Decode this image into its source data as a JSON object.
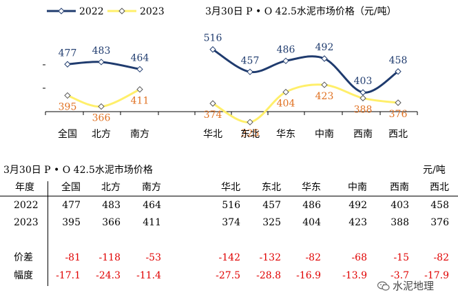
{
  "chart_data": {
    "type": "line",
    "title": "3月30日 P • O 42.5水泥市场价格（元/吨）",
    "groups": [
      [
        "全国",
        "北方",
        "南方"
      ],
      [
        "华北",
        "东北",
        "华东",
        "中南",
        "西南",
        "西北"
      ]
    ],
    "categories": [
      "全国",
      "北方",
      "南方",
      "华北",
      "东北",
      "华东",
      "中南",
      "西南",
      "西北"
    ],
    "series": [
      {
        "name": "2022",
        "color": "#1f3b6e",
        "values": [
          477,
          483,
          464,
          516,
          457,
          486,
          492,
          403,
          458
        ]
      },
      {
        "name": "2023",
        "color": "#ffef6a",
        "label_color": "#e07020",
        "values": [
          395,
          366,
          411,
          374,
          325,
          404,
          423,
          388,
          376
        ]
      }
    ],
    "ylim": [
      300,
      530
    ],
    "legend_position": "top-left",
    "xlabel": "",
    "ylabel": ""
  },
  "table": {
    "title": "3月30日 P • O 42.5水泥市场价格",
    "unit": "元/吨",
    "header_label": "年度",
    "columns": [
      "全国",
      "北方",
      "南方",
      "华北",
      "东北",
      "华东",
      "中南",
      "西南",
      "西北"
    ],
    "rows": [
      {
        "label": "2022",
        "values": [
          "477",
          "483",
          "464",
          "516",
          "457",
          "486",
          "492",
          "403",
          "458"
        ]
      },
      {
        "label": "2023",
        "values": [
          "395",
          "366",
          "411",
          "374",
          "325",
          "404",
          "423",
          "388",
          "376"
        ]
      },
      {
        "label": "价差",
        "values": [
          "-81",
          "-118",
          "-53",
          "-142",
          "-132",
          "-82",
          "-68",
          "-15",
          "-82"
        ]
      },
      {
        "label": "幅度",
        "values": [
          "-17.1",
          "-24.3",
          "-11.4",
          "-27.5",
          "-28.8",
          "-16.9",
          "-13.9",
          "-3.7",
          "-17.9"
        ]
      }
    ]
  },
  "watermark": "水泥地理"
}
